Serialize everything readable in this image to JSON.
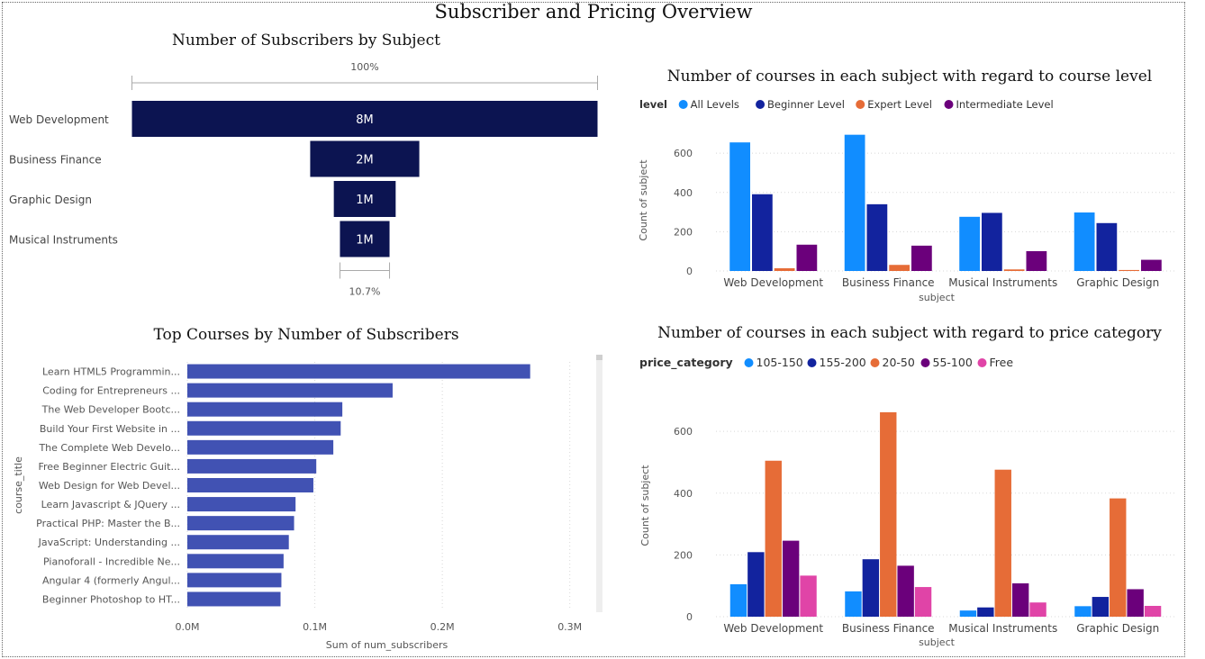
{
  "page": {
    "title": "Subscriber and Pricing Overview"
  },
  "colors": {
    "navy": "#0c1451",
    "bar_blue": "#4152b3",
    "all_levels": "#118dff",
    "beginner": "#12239e",
    "expert": "#e66c37",
    "intermediate": "#6b007b",
    "free": "#e044a7"
  },
  "chart_data": [
    {
      "id": "funnel",
      "type": "funnel",
      "title": "Number of Subscribers by Subject",
      "top_label": "100%",
      "bottom_label": "10.7%",
      "categories": [
        "Web Development",
        "Business Finance",
        "Graphic Design",
        "Musical Instruments"
      ],
      "values": [
        7980000,
        1870000,
        1060000,
        850000
      ],
      "value_labels": [
        "8M",
        "2M",
        "1M",
        "1M"
      ]
    },
    {
      "id": "levels",
      "type": "bar",
      "title": "Number of courses in each subject with regard to course level",
      "legend_title": "level",
      "legend_position": "top-left",
      "xlabel": "subject",
      "ylabel": "Count of subject",
      "ylim": [
        0,
        720
      ],
      "yticks": [
        0,
        200,
        400,
        600
      ],
      "grid": true,
      "categories": [
        "Web Development",
        "Business Finance",
        "Musical Instruments",
        "Graphic Design"
      ],
      "series": [
        {
          "name": "All Levels",
          "color": "#118dff",
          "values": [
            655,
            694,
            276,
            298
          ]
        },
        {
          "name": "Beginner Level",
          "color": "#12239e",
          "values": [
            391,
            340,
            296,
            244
          ]
        },
        {
          "name": "Expert Level",
          "color": "#e66c37",
          "values": [
            14,
            31,
            8,
            5
          ]
        },
        {
          "name": "Intermediate Level",
          "color": "#6b007b",
          "values": [
            134,
            129,
            101,
            57
          ]
        }
      ]
    },
    {
      "id": "topcourses",
      "type": "bar",
      "orientation": "horizontal",
      "title": "Top Courses by Number of Subscribers",
      "xlabel": "Sum of num_subscribers",
      "ylabel": "course_title",
      "xlim": [
        0,
        320000
      ],
      "xticks": [
        0,
        100000,
        200000,
        300000
      ],
      "xtick_labels": [
        "0.0M",
        "0.1M",
        "0.2M",
        "0.3M"
      ],
      "grid": true,
      "categories": [
        "Learn HTML5 Programmin...",
        "Coding for Entrepreneurs ...",
        "The Web Developer Bootc...",
        "Build Your First Website in ...",
        "The Complete Web Develo...",
        "Free Beginner Electric Guit...",
        "Web Design for Web Devel...",
        "Learn Javascript & JQuery ...",
        "Practical PHP: Master the B...",
        "JavaScript: Understanding ...",
        "Pianoforall - Incredible Ne...",
        "Angular 4 (formerly Angul...",
        "Beginner Photoshop to HT..."
      ],
      "values": [
        268923,
        161029,
        121584,
        120291,
        114512,
        101154,
        98867,
        84897,
        83737,
        79612,
        75499,
        73783,
        73110
      ]
    },
    {
      "id": "prices",
      "type": "bar",
      "title": "Number of courses in each subject with regard to price category",
      "legend_title": "price_category",
      "legend_position": "top-left",
      "xlabel": "subject",
      "ylabel": "Count of subject",
      "ylim": [
        0,
        720
      ],
      "yticks": [
        0,
        200,
        400,
        600
      ],
      "grid": true,
      "categories": [
        "Web Development",
        "Business Finance",
        "Musical Instruments",
        "Graphic Design"
      ],
      "series": [
        {
          "name": "105-150",
          "color": "#118dff",
          "values": [
            105,
            82,
            20,
            34
          ]
        },
        {
          "name": "155-200",
          "color": "#12239e",
          "values": [
            209,
            186,
            30,
            64
          ]
        },
        {
          "name": "20-50",
          "color": "#e66c37",
          "values": [
            505,
            662,
            476,
            383
          ]
        },
        {
          "name": "55-100",
          "color": "#6b007b",
          "values": [
            246,
            165,
            108,
            89
          ]
        },
        {
          "name": "Free",
          "color": "#e044a7",
          "values": [
            133,
            96,
            46,
            35
          ]
        }
      ]
    }
  ]
}
